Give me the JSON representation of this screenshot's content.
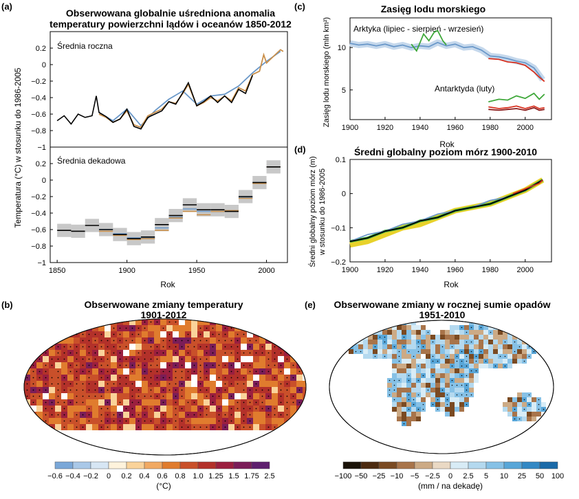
{
  "panel_labels": {
    "a": "(a)",
    "b": "(b)",
    "c": "(c)",
    "d": "(d)",
    "e": "(e)"
  },
  "colors": {
    "black": "#000000",
    "blue": "#6a98c9",
    "orange": "#c98f4a",
    "green": "#3fa83a",
    "red": "#d7301f",
    "darkred": "#8b1a1a",
    "yellow": "#e8d22a",
    "gray": "#c8c8c8"
  },
  "chart_data": [
    {
      "id": "a",
      "type": "line",
      "title": "Obserwowana globalnie uśredniona anomalia temperatury powierzchni lądów i oceanów 1850-2012",
      "title_lines": [
        "Obserwowana globalnie uśredniona anomalia",
        "temperatury powierzchni lądów i oceanów 1850-2012"
      ],
      "ylabel": "Temperatura (°C) w stosunku do 1986-2005",
      "xlabel": "Rok",
      "x_ticks": [
        "1850",
        "1900",
        "1950",
        "2000"
      ],
      "xlim": [
        1845,
        2015
      ],
      "subpanels": [
        {
          "label": "Średnia roczna",
          "ylim": [
            -1.0,
            0.4
          ],
          "y_ticks": [
            "0.2",
            "0",
            "−0.2",
            "−0.4",
            "−0.6",
            "−0.8",
            "−1"
          ],
          "series": [
            {
              "color": "black",
              "x": [
                1850,
                1855,
                1860,
                1865,
                1870,
                1875,
                1878,
                1880,
                1885,
                1890,
                1895,
                1900,
                1905,
                1910,
                1915,
                1920,
                1925,
                1930,
                1935,
                1940,
                1944,
                1950,
                1955,
                1960,
                1965,
                1970,
                1975,
                1980,
                1985,
                1990
              ],
              "y": [
                -0.68,
                -0.62,
                -0.72,
                -0.6,
                -0.64,
                -0.62,
                -0.38,
                -0.58,
                -0.63,
                -0.7,
                -0.66,
                -0.54,
                -0.75,
                -0.78,
                -0.64,
                -0.6,
                -0.56,
                -0.45,
                -0.48,
                -0.34,
                -0.22,
                -0.5,
                -0.45,
                -0.38,
                -0.46,
                -0.38,
                -0.46,
                -0.3,
                -0.35,
                -0.13
              ]
            },
            {
              "color": "orange",
              "x": [
                1880,
                1885,
                1890,
                1895,
                1900,
                1905,
                1910,
                1915,
                1920,
                1925,
                1930,
                1935,
                1940,
                1944,
                1950,
                1955,
                1960,
                1965,
                1970,
                1975,
                1980,
                1985,
                1990,
                1995,
                1998,
                2000,
                2005,
                2010,
                2012
              ],
              "y": [
                -0.6,
                -0.64,
                -0.7,
                -0.66,
                -0.56,
                -0.73,
                -0.76,
                -0.62,
                -0.58,
                -0.54,
                -0.45,
                -0.47,
                -0.35,
                -0.24,
                -0.5,
                -0.46,
                -0.4,
                -0.44,
                -0.38,
                -0.44,
                -0.28,
                -0.32,
                -0.12,
                -0.08,
                0.12,
                0.02,
                0.1,
                0.18,
                0.16
              ]
            },
            {
              "color": "blue",
              "x": [
                1880,
                1890,
                1900,
                1910,
                1920,
                1930,
                1940,
                1950,
                1960,
                1970,
                1980,
                1990,
                2000,
                2010
              ],
              "y": [
                -0.58,
                -0.68,
                -0.54,
                -0.74,
                -0.56,
                -0.42,
                -0.32,
                -0.48,
                -0.38,
                -0.36,
                -0.26,
                -0.1,
                0.04,
                0.16
              ]
            }
          ]
        },
        {
          "label": "Średnia dekadowa",
          "ylim": [
            -1.0,
            0.4
          ],
          "y_ticks": [
            "0.2",
            "0",
            "−0.2",
            "−0.4",
            "−0.6",
            "−0.8",
            "−1"
          ],
          "decades": [
            1850,
            1860,
            1870,
            1880,
            1890,
            1900,
            1910,
            1920,
            1930,
            1940,
            1950,
            1960,
            1970,
            1980,
            1990,
            2000
          ],
          "black": [
            -0.61,
            -0.62,
            -0.55,
            -0.6,
            -0.66,
            -0.71,
            -0.69,
            -0.54,
            -0.43,
            -0.3,
            -0.36,
            -0.36,
            -0.38,
            -0.2,
            -0.03,
            0.16
          ],
          "orange": [
            null,
            null,
            null,
            -0.62,
            -0.67,
            -0.72,
            -0.71,
            -0.61,
            -0.46,
            -0.38,
            -0.42,
            -0.38,
            -0.37,
            -0.22,
            -0.04,
            0.16
          ],
          "blue": [
            null,
            null,
            null,
            -0.6,
            -0.65,
            -0.7,
            -0.7,
            -0.58,
            -0.45,
            -0.35,
            -0.38,
            -0.38,
            -0.37,
            -0.21,
            -0.03,
            0.16
          ],
          "band": 0.08
        }
      ]
    },
    {
      "id": "c",
      "type": "line",
      "title": "Zasięg lodu morskiego",
      "ylabel": "Zasięg lodu morskiego (mln km²)",
      "xlabel": "Rok",
      "xlim": [
        1900,
        2015
      ],
      "ylim": [
        1.5,
        13.5
      ],
      "x_ticks": [
        "1900",
        "1920",
        "1940",
        "1960",
        "1980",
        "2000"
      ],
      "y_ticks": [
        "10",
        "5"
      ],
      "annotations": [
        "Arktyka (lipiec - sierpień - wrzesień)",
        "Antarktyda (luty)"
      ],
      "series": [
        {
          "name": "Arktyka",
          "color": "blue",
          "x": [
            1900,
            1905,
            1910,
            1915,
            1920,
            1925,
            1930,
            1935,
            1940,
            1945,
            1950,
            1955,
            1960,
            1965,
            1970,
            1975,
            1980,
            1985,
            1990,
            1995,
            2000,
            2005,
            2010
          ],
          "y": [
            10.5,
            10.3,
            10.4,
            10.2,
            10.4,
            10.1,
            10.3,
            10.0,
            10.2,
            10.1,
            10.6,
            10.2,
            10.4,
            10.0,
            10.1,
            9.7,
            9.0,
            8.9,
            8.7,
            8.4,
            8.2,
            7.6,
            6.2
          ]
        },
        {
          "name": "Arktyka-green",
          "color": "green",
          "x": [
            1935,
            1938,
            1940,
            1942,
            1945,
            1948,
            1950,
            1953,
            1955
          ],
          "y": [
            10.4,
            9.6,
            10.6,
            11.6,
            10.8,
            11.8,
            12.0,
            10.8,
            10.3
          ]
        },
        {
          "name": "Arktyka-red",
          "color": "red",
          "x": [
            1979,
            1985,
            1990,
            1995,
            2000,
            2005,
            2008,
            2011
          ],
          "y": [
            8.7,
            8.6,
            8.3,
            8.2,
            7.9,
            7.1,
            6.5,
            6.0
          ]
        },
        {
          "name": "Antarktyda-green",
          "color": "green",
          "x": [
            1979,
            1985,
            1990,
            1995,
            2000,
            2005,
            2008,
            2011
          ],
          "y": [
            3.6,
            3.9,
            3.8,
            4.3,
            4.0,
            4.6,
            3.9,
            4.5
          ]
        },
        {
          "name": "Antarktyda-red",
          "color": "red",
          "x": [
            1979,
            1985,
            1990,
            1995,
            2000,
            2005,
            2008,
            2011
          ],
          "y": [
            3.0,
            2.8,
            2.9,
            3.1,
            2.8,
            3.1,
            2.8,
            2.9
          ]
        },
        {
          "name": "Antarktyda-darkred",
          "color": "darkred",
          "x": [
            1979,
            1985,
            1990,
            1995,
            2000,
            2005,
            2008,
            2011
          ],
          "y": [
            2.7,
            2.6,
            2.7,
            2.8,
            2.6,
            2.9,
            2.6,
            2.7
          ]
        }
      ]
    },
    {
      "id": "d",
      "type": "line",
      "title": "Średni globalny poziom mórz 1900-2010",
      "ylabel": "Średni globalny poziom mórz (m) w stosunku do 1986-2005",
      "ylabel_lines": [
        "Średni globalny poziom mórz (m)",
        "w stosunku do 1986-2005"
      ],
      "xlabel": "Rok",
      "xlim": [
        1900,
        2015
      ],
      "ylim": [
        -0.2,
        0.1
      ],
      "x_ticks": [
        "1900",
        "1920",
        "1940",
        "1960",
        "1980",
        "2000"
      ],
      "y_ticks": [
        "0.1",
        "0",
        "−0.1",
        "−0.2"
      ],
      "series": [
        {
          "color": "yellow",
          "x": [
            1900,
            1910,
            1920,
            1930,
            1940,
            1950,
            1960,
            1970,
            1980,
            1990,
            2000,
            2010
          ],
          "y": [
            -0.15,
            -0.14,
            -0.12,
            -0.1,
            -0.09,
            -0.07,
            -0.05,
            -0.04,
            -0.03,
            -0.01,
            0.01,
            0.04
          ]
        },
        {
          "color": "green",
          "x": [
            1900,
            1910,
            1920,
            1930,
            1940,
            1950,
            1960,
            1970,
            1980,
            1990,
            2000,
            2010
          ],
          "y": [
            -0.14,
            -0.13,
            -0.11,
            -0.1,
            -0.08,
            -0.07,
            -0.05,
            -0.04,
            -0.03,
            -0.01,
            0.01,
            0.04
          ]
        },
        {
          "color": "blue",
          "x": [
            1900,
            1910,
            1920,
            1930,
            1940,
            1950,
            1960,
            1970,
            1980,
            1990,
            2000,
            2010
          ],
          "y": [
            -0.14,
            -0.12,
            -0.11,
            -0.09,
            -0.08,
            -0.06,
            -0.05,
            -0.04,
            -0.02,
            -0.01,
            0.01,
            0.04
          ]
        },
        {
          "color": "black",
          "x": [
            1900,
            1910,
            1920,
            1930,
            1940,
            1950,
            1960,
            1970,
            1980,
            1990,
            2000,
            2010
          ],
          "y": [
            -0.14,
            -0.13,
            -0.11,
            -0.1,
            -0.08,
            -0.07,
            -0.05,
            -0.04,
            -0.03,
            -0.01,
            0.01,
            0.04
          ]
        },
        {
          "color": "red",
          "x": [
            1993,
            1998,
            2003,
            2008,
            2010
          ],
          "y": [
            0.0,
            0.01,
            0.02,
            0.03,
            0.04
          ]
        }
      ]
    },
    {
      "id": "b",
      "type": "heatmap",
      "title": "Obserwowane zmiany temperatury 1901-2012",
      "title_lines": [
        "Obserwowane zmiany temperatury",
        "1901-2012"
      ],
      "unit": "(°C)",
      "colorbar_ticks": [
        "−0.6",
        "−0.4",
        "−0.2",
        "0",
        "0.2",
        "0.4",
        "0.6",
        "0.8",
        "1.0",
        "1.25",
        "1.5",
        "1.75",
        "2.5"
      ],
      "colorbar_colors": [
        "#7aa7d8",
        "#a9c8e8",
        "#d7e6f4",
        "#fff3dc",
        "#fad39a",
        "#f1a963",
        "#e07c2e",
        "#c9502a",
        "#b3312a",
        "#9b1f3f",
        "#7b1d58",
        "#5e1f6e"
      ]
    },
    {
      "id": "e",
      "type": "heatmap",
      "title": "Obserwowane zmiany w rocznej sumie opadów 1951-2010",
      "title_lines": [
        "Obserwowane zmiany w rocznej sumie opadów",
        "1951-2010"
      ],
      "unit": "(mm / na dekadę)",
      "colorbar_ticks": [
        "−100",
        "−50",
        "−25",
        "−10",
        "−5",
        "−2.5",
        "0",
        "2.5",
        "5",
        "10",
        "25",
        "50",
        "100"
      ],
      "colorbar_colors": [
        "#1a1208",
        "#4b2a10",
        "#7a4a22",
        "#a8744a",
        "#ccaa85",
        "#ead9c4",
        "#d8ecf6",
        "#b4d9ef",
        "#86c1e6",
        "#58a6d8",
        "#3388c4",
        "#1b6aa8"
      ]
    }
  ]
}
